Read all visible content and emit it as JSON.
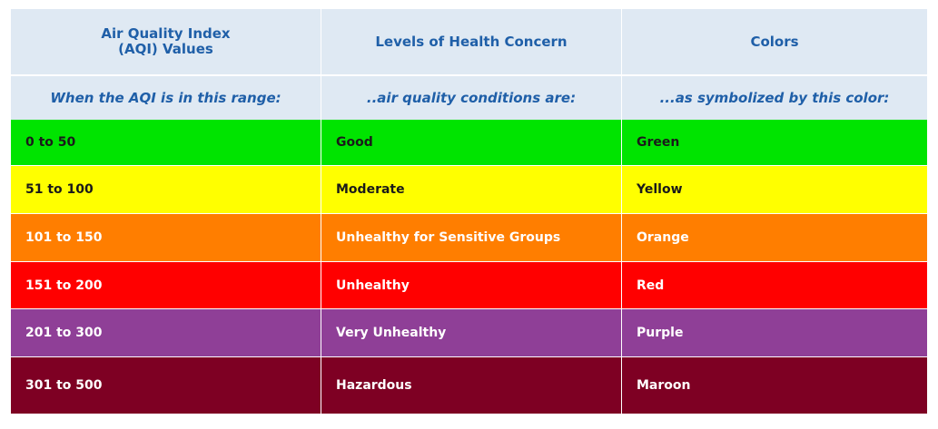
{
  "table": {
    "headers": [
      {
        "line1": "Air Quality Index",
        "line2": "(AQI) Values"
      },
      {
        "line1": "Levels of Health Concern",
        "line2": ""
      },
      {
        "line1": "Colors",
        "line2": ""
      }
    ],
    "subheaders": [
      "When the AQI is in this range:",
      "..air quality conditions are:",
      "...as symbolized by this color:"
    ],
    "rows": [
      {
        "range": "0 to 50",
        "level": "Good",
        "color": "Green",
        "bg": "#00e400",
        "fg": "#1a1a1a"
      },
      {
        "range": "51 to 100",
        "level": "Moderate",
        "color": "Yellow",
        "bg": "#ffff00",
        "fg": "#1a1a1a"
      },
      {
        "range": "101 to 150",
        "level": "Unhealthy for Sensitive Groups",
        "color": "Orange",
        "bg": "#ff7e00",
        "fg": "#ffffff"
      },
      {
        "range": "151 to 200",
        "level": "Unhealthy",
        "color": "Red",
        "bg": "#ff0000",
        "fg": "#ffffff"
      },
      {
        "range": "201 to 300",
        "level": "Very Unhealthy",
        "color": "Purple",
        "bg": "#8f3f97",
        "fg": "#ffffff"
      },
      {
        "range": "301 to 500",
        "level": "Hazardous",
        "color": "Maroon",
        "bg": "#7e0023",
        "fg": "#ffffff"
      }
    ]
  }
}
